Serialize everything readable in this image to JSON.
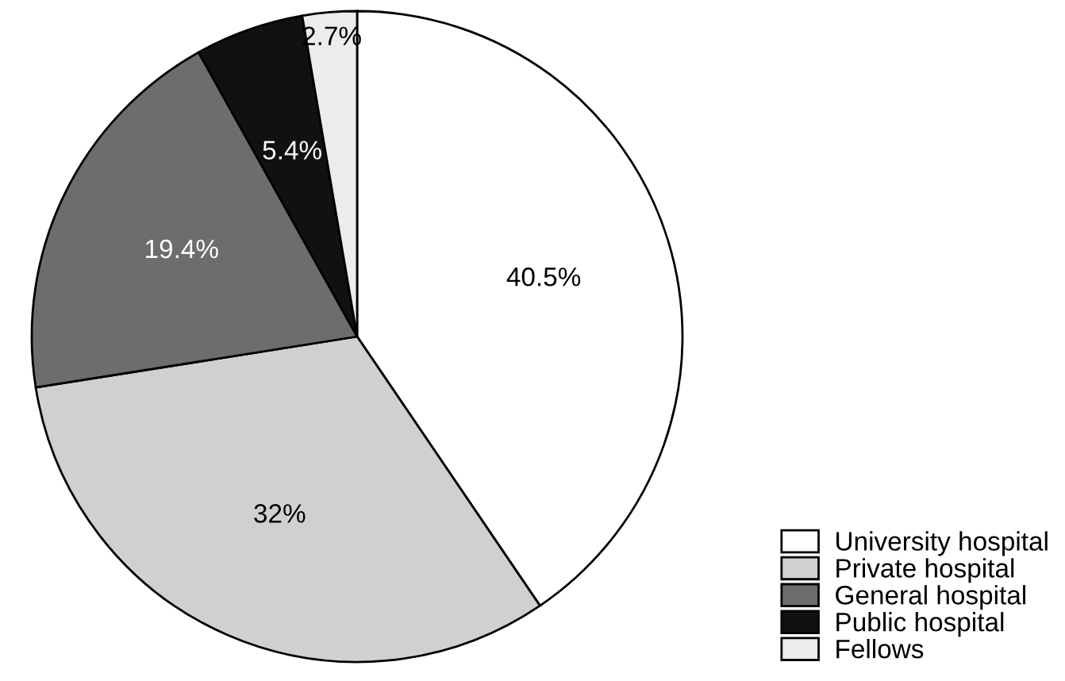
{
  "chart_data": {
    "type": "pie",
    "categories": [
      "University hospital",
      "Private hospital",
      "General hospital",
      "Public hospital",
      "Fellows"
    ],
    "values": [
      40.5,
      32,
      19.4,
      5.4,
      2.7
    ],
    "value_labels": [
      "40.5%",
      "32%",
      "19.4%",
      "5.4%",
      "2.7%"
    ],
    "colors": [
      "#ffffff",
      "#d0d0d0",
      "#6d6d6d",
      "#111111",
      "#ececec"
    ],
    "legend": "bottom right"
  }
}
